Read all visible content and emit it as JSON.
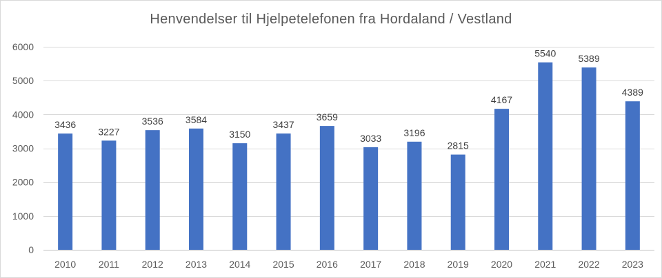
{
  "chart_data": {
    "type": "bar",
    "title": "Henvendelser til Hjelpetelefonen fra Hordaland / Vestland",
    "xlabel": "",
    "ylabel": "",
    "categories": [
      "2010",
      "2011",
      "2012",
      "2013",
      "2014",
      "2015",
      "2016",
      "2017",
      "2018",
      "2019",
      "2020",
      "2021",
      "2022",
      "2023"
    ],
    "values": [
      3436,
      3227,
      3536,
      3584,
      3150,
      3437,
      3659,
      3033,
      3196,
      2815,
      4167,
      5540,
      5389,
      4389
    ],
    "ylim": [
      0,
      6000
    ],
    "yticks": [
      0,
      1000,
      2000,
      3000,
      4000,
      5000,
      6000
    ],
    "grid": true,
    "data_labels": true,
    "legend": "none",
    "bar_color": "#4472C4"
  }
}
